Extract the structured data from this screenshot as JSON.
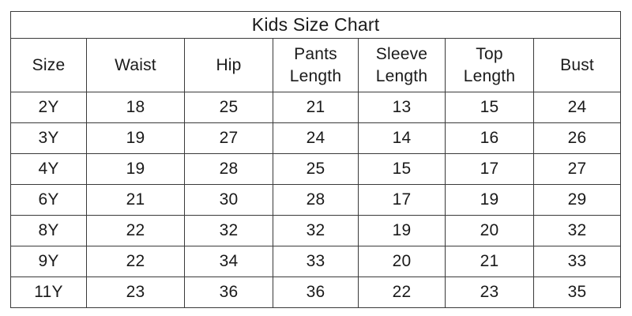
{
  "chart_data": {
    "type": "table",
    "title": "Kids Size Chart",
    "columns": [
      "Size",
      "Waist",
      "Hip",
      "Pants Length",
      "Sleeve Length",
      "Top Length",
      "Bust"
    ],
    "rows": [
      [
        "2Y",
        "18",
        "25",
        "21",
        "13",
        "15",
        "24"
      ],
      [
        "3Y",
        "19",
        "27",
        "24",
        "14",
        "16",
        "26"
      ],
      [
        "4Y",
        "19",
        "28",
        "25",
        "15",
        "17",
        "27"
      ],
      [
        "6Y",
        "21",
        "30",
        "28",
        "17",
        "19",
        "29"
      ],
      [
        "8Y",
        "22",
        "32",
        "32",
        "19",
        "20",
        "32"
      ],
      [
        "9Y",
        "22",
        "34",
        "33",
        "20",
        "21",
        "33"
      ],
      [
        "11Y",
        "23",
        "36",
        "36",
        "22",
        "23",
        "35"
      ]
    ],
    "layout": {
      "grid": "on",
      "header_rows": 2,
      "text_align": "center"
    },
    "colors": {
      "border": "#3a3a3a",
      "text": "#1a1a1a",
      "background": "#ffffff"
    }
  }
}
